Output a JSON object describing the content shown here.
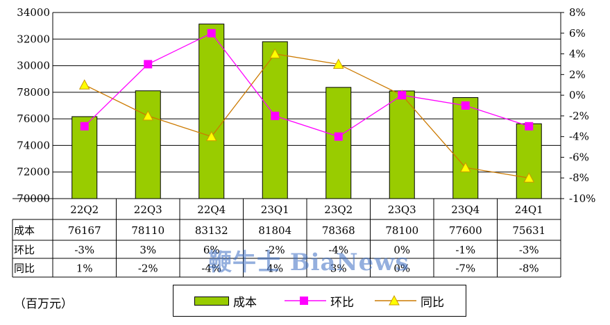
{
  "chart_data": {
    "type": "bar+line",
    "categories": [
      "22Q2",
      "22Q3",
      "22Q4",
      "23Q1",
      "23Q2",
      "23Q3",
      "23Q4",
      "24Q1"
    ],
    "series": [
      {
        "name": "成本",
        "type": "bar",
        "axis": "left",
        "color": "#99cc00",
        "values": [
          76167,
          78110,
          83132,
          81804,
          78368,
          78100,
          77600,
          75631
        ]
      },
      {
        "name": "环比",
        "type": "line",
        "axis": "right",
        "color": "#ff00ff",
        "marker": "square",
        "values": [
          -3,
          3,
          6,
          -2,
          -4,
          0,
          -1,
          -3
        ]
      },
      {
        "name": "同比",
        "type": "line",
        "axis": "right",
        "color": "#cc7a00",
        "marker": "triangle",
        "marker_color": "#ffff00",
        "values": [
          1,
          -2,
          -4,
          4,
          3,
          0,
          -7,
          -8
        ]
      }
    ],
    "left_axis": {
      "ylim": [
        70000,
        84000
      ],
      "ticks": [
        "70000",
        "72000",
        "74000",
        "76000",
        "78000",
        "30000",
        "32000",
        "34000"
      ]
    },
    "right_axis": {
      "ylim": [
        -10,
        8
      ],
      "ticks": [
        "-10%",
        "-8%",
        "-6%",
        "-4%",
        "-2%",
        "0%",
        "2%",
        "4%",
        "6%",
        "8%"
      ]
    },
    "grid": true,
    "legend_position": "bottom"
  },
  "table": {
    "rows": [
      {
        "label": "成本",
        "cells": [
          "76167",
          "78110",
          "83132",
          "81804",
          "78368",
          "78100",
          "77600",
          "75631"
        ]
      },
      {
        "label": "环比",
        "cells": [
          "-3%",
          "3%",
          "6%",
          "-2%",
          "-4%",
          "0%",
          "-1%",
          "-3%"
        ]
      },
      {
        "label": "同比",
        "cells": [
          "1%",
          "-2%",
          "-4%",
          "4%",
          "3%",
          "0%",
          "-7%",
          "-8%"
        ]
      }
    ]
  },
  "unit_label": "（百万元）",
  "legend": {
    "bar_label": "成本",
    "line1_label": "环比",
    "line2_label": "同比"
  },
  "watermark": "鞭牛士 BiaNews"
}
